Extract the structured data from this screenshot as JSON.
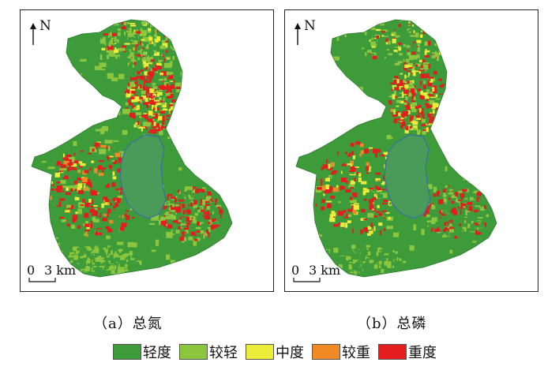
{
  "panels": [
    {
      "id": "a",
      "caption": "（a）总氮",
      "north_label": "N",
      "scale_zero": "0",
      "scale_distance": "3 km",
      "dominant_classes": [
        "重度",
        "轻度",
        "较轻",
        "中度",
        "较重"
      ]
    },
    {
      "id": "b",
      "caption": "（b）总磷",
      "north_label": "N",
      "scale_zero": "0",
      "scale_distance": "3 km",
      "dominant_classes": [
        "轻度",
        "重度",
        "中度",
        "较轻",
        "较重"
      ]
    }
  ],
  "legend": [
    {
      "label": "轻度",
      "color": "#3e9b3a"
    },
    {
      "label": "较轻",
      "color": "#8cc63f"
    },
    {
      "label": "中度",
      "color": "#ecec3a"
    },
    {
      "label": "较重",
      "color": "#f08a24"
    },
    {
      "label": "重度",
      "color": "#e41e1e"
    }
  ],
  "colors": {
    "lake": "#4a9a5a",
    "lake_outline": "#3b6ea5",
    "border": "#222222"
  },
  "icons": [
    "north-arrow-icon",
    "scale-bar-icon"
  ]
}
